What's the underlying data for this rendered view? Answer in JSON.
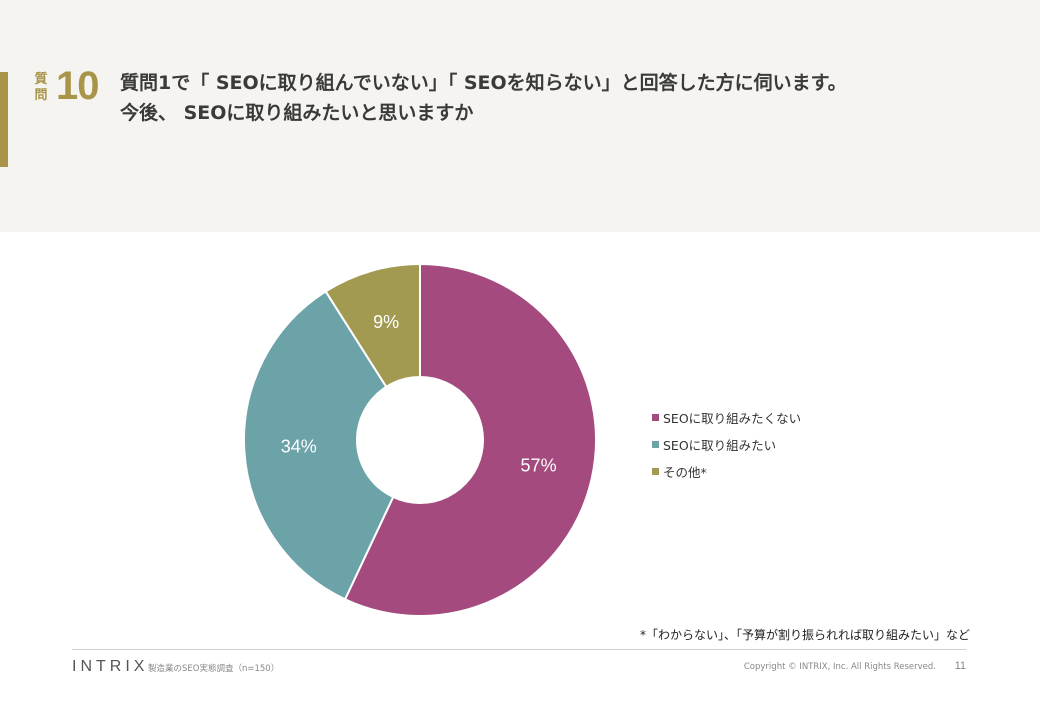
{
  "header": {
    "question_kanji_1": "質",
    "question_kanji_2": "問",
    "question_number": "10",
    "title_line1": "質問1で「 SEOに取り組んでいない」「 SEOを知らない」と回答した方に伺います。",
    "title_line2": "今後、 SEOに取り組みたいと思いますか"
  },
  "chart_data": {
    "type": "pie",
    "donut": true,
    "labels": [
      "SEOに取り組みたくない",
      "SEOに取り組みたい",
      "その他*"
    ],
    "values": [
      57,
      34,
      9
    ],
    "value_labels": [
      "57%",
      "34%",
      "9%"
    ],
    "colors": [
      "#a44a7e",
      "#6ba3a9",
      "#a39a52"
    ],
    "legend_position": "right"
  },
  "footnote": "*「わからない」、「予算が割り振られれば取り組みたい」など",
  "footer": {
    "logo": "INTRIX",
    "source": "製造業のSEO実態調査（n=150）",
    "copyright": "Copyright © INTRIX, Inc. All Rights Reserved.",
    "page": "11"
  }
}
